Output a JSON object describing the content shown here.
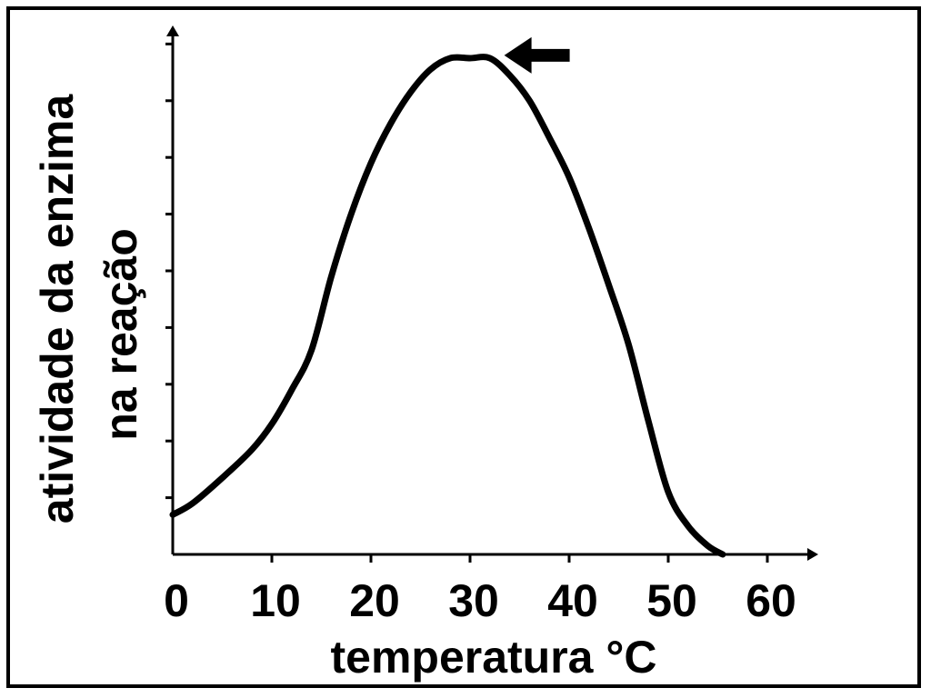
{
  "chart_data": {
    "type": "line",
    "xlabel": "temperatura °C",
    "ylabel_lines": [
      "atividade da enzima",
      "na reação"
    ],
    "x_ticks": [
      0,
      10,
      20,
      30,
      40,
      50,
      60
    ],
    "x_tick_labels": [
      "0",
      "10",
      "20",
      "30",
      "40",
      "50",
      "60"
    ],
    "xlim": [
      0,
      65
    ],
    "ylim": [
      0,
      10
    ],
    "y_tick_values": [
      1,
      2,
      3,
      4,
      5,
      6,
      7,
      8,
      9
    ],
    "grid": false,
    "series": [
      {
        "x": [
          0,
          2,
          5,
          8,
          10,
          12,
          14,
          16,
          18,
          20,
          22,
          24,
          26,
          28,
          30,
          32,
          34,
          36,
          38,
          40,
          42,
          44,
          46,
          48,
          50,
          52,
          54,
          55.5
        ],
        "y": [
          0.7,
          0.9,
          1.35,
          1.85,
          2.3,
          2.9,
          3.6,
          4.9,
          6.0,
          6.9,
          7.6,
          8.15,
          8.55,
          8.75,
          8.75,
          8.75,
          8.45,
          8.0,
          7.35,
          6.65,
          5.75,
          4.75,
          3.7,
          2.35,
          1.1,
          0.5,
          0.15,
          0.0
        ]
      }
    ],
    "annotations": [
      {
        "type": "arrow",
        "direction": "left",
        "points_to_x": 34,
        "points_to_y": 8.8
      }
    ],
    "colors": {
      "line": "#000000",
      "axes": "#000000",
      "background": "#ffffff"
    }
  }
}
